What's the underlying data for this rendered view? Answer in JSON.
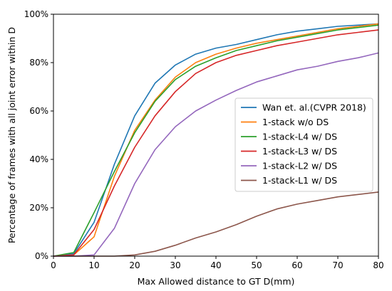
{
  "chart_data": {
    "type": "line",
    "title": "",
    "xlabel": "Max Allowed distance to GT D(mm)",
    "ylabel": "Percentage of frames with all joint error within D",
    "xlim": [
      0,
      80
    ],
    "ylim": [
      0,
      100
    ],
    "x_ticks": [
      0,
      10,
      20,
      30,
      40,
      50,
      60,
      70,
      80
    ],
    "x_tick_labels": [
      "0",
      "10",
      "20",
      "30",
      "40",
      "50",
      "60",
      "70",
      "80"
    ],
    "y_ticks": [
      0,
      20,
      40,
      60,
      80,
      100
    ],
    "y_tick_labels": [
      "0%",
      "20%",
      "40%",
      "60%",
      "80%",
      "100%"
    ],
    "grid": false,
    "legend_position": "center-right",
    "x": [
      0,
      5,
      10,
      15,
      20,
      25,
      30,
      35,
      40,
      45,
      50,
      55,
      60,
      65,
      70,
      75,
      80
    ],
    "series": [
      {
        "name": "Wan et. al.(CVPR 2018)",
        "color": "#1f77b4",
        "values": [
          0,
          1,
          14,
          38,
          58,
          71.5,
          79,
          83.5,
          86,
          87.5,
          89.5,
          91.5,
          93,
          94,
          95,
          95.5,
          96
        ]
      },
      {
        "name": "1-stack w/o DS",
        "color": "#ff7f0e",
        "values": [
          0,
          0.5,
          8,
          33,
          52,
          64.5,
          74,
          80,
          83.5,
          86,
          88,
          89.5,
          91,
          92.5,
          94,
          95,
          96
        ]
      },
      {
        "name": "1-stack-L4 w/ DS",
        "color": "#2ca02c",
        "values": [
          0,
          1.5,
          18,
          35,
          51,
          64,
          73,
          78.5,
          82,
          85,
          87,
          89,
          90.5,
          92,
          93.5,
          94.5,
          95.5
        ]
      },
      {
        "name": "1-stack-L3 w/ DS",
        "color": "#d62728",
        "values": [
          0,
          0.5,
          11,
          29,
          45,
          58,
          68,
          75.5,
          80,
          83,
          85,
          87,
          88.5,
          90,
          91.5,
          92.5,
          93.5
        ]
      },
      {
        "name": "1-stack-L2 w/ DS",
        "color": "#9467bd",
        "values": [
          0,
          0,
          0.5,
          11.5,
          30,
          44,
          53.5,
          60,
          64.5,
          68.5,
          72,
          74.5,
          77,
          78.5,
          80.5,
          82,
          84
        ]
      },
      {
        "name": "1-stack-L1 w/ DS",
        "color": "#8c564b",
        "values": [
          0,
          0,
          0,
          0,
          0.5,
          2,
          4.5,
          7.5,
          10,
          13,
          16.5,
          19.5,
          21.5,
          23,
          24.5,
          25.5,
          26.5
        ]
      }
    ]
  }
}
